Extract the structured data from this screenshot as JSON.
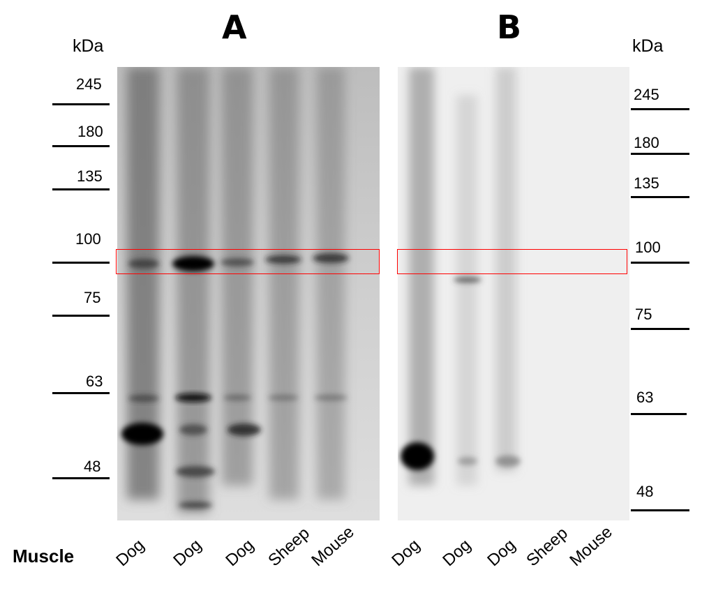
{
  "figure": {
    "panel_a_label": "A",
    "panel_b_label": "B",
    "row_label": "Muscle",
    "kda_label": "kDa",
    "panel_a": {
      "markers": [
        "245",
        "180",
        "135",
        "100",
        "75",
        "63",
        "48"
      ],
      "lanes": [
        "Dog",
        "Dog",
        "Dog",
        "Sheep",
        "Mouse"
      ]
    },
    "panel_b": {
      "markers": [
        "245",
        "180",
        "135",
        "100",
        "75",
        "63",
        "48"
      ],
      "lanes": [
        "Dog",
        "Dog",
        "Dog",
        "Sheep",
        "Mouse"
      ]
    },
    "highlight_color": "#ff0000"
  }
}
